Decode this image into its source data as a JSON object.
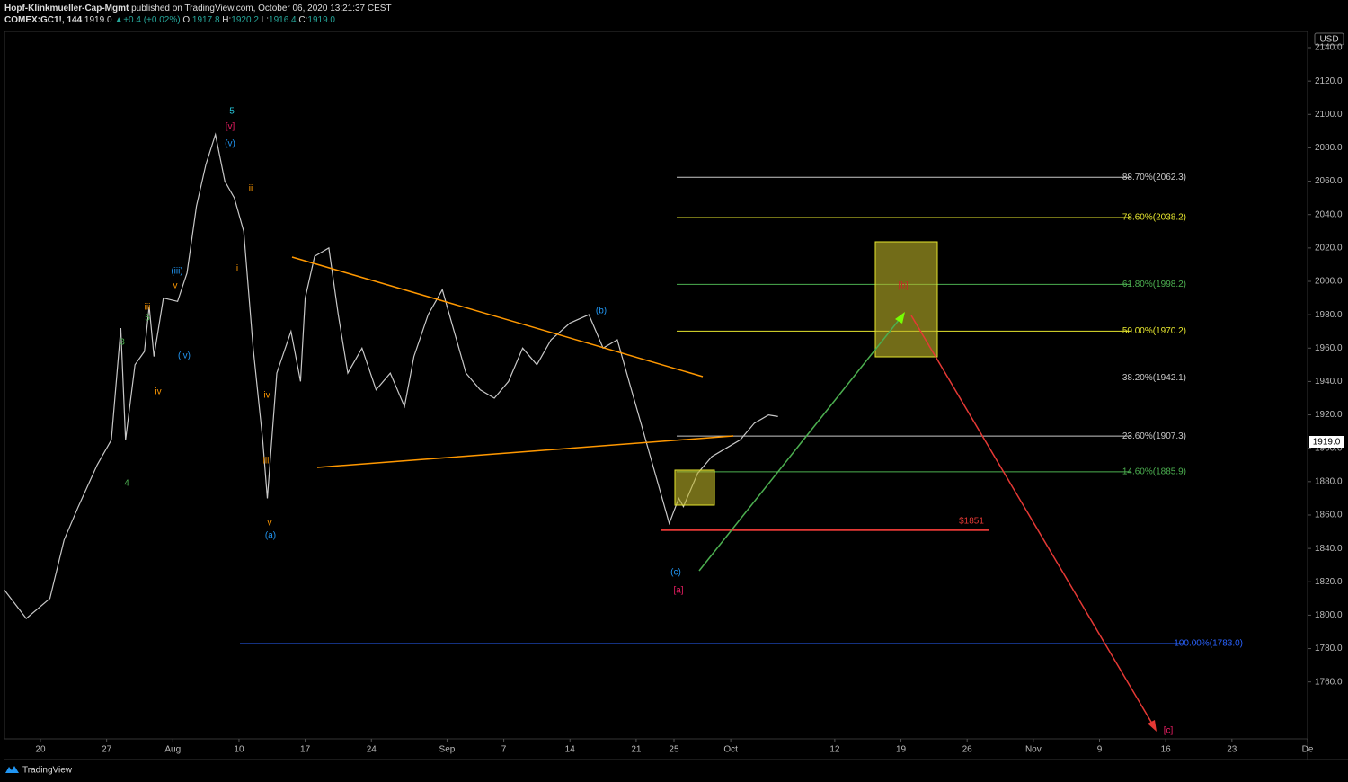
{
  "header": {
    "author": "Hopf-Klinkmueller-Cap-Mgmt",
    "published": "published on TradingView.com, October 06, 2020 13:21:37 CEST",
    "symbol": "COMEX:GC1!, 144",
    "last": "1919.0",
    "change": "+0.4 (+0.02%)",
    "ohlc": [
      {
        "key": "O:",
        "value": "1917.8"
      },
      {
        "key": "H:",
        "value": "1920.2"
      },
      {
        "key": "L:",
        "value": "1916.4"
      },
      {
        "key": "C:",
        "value": "1919.0"
      }
    ]
  },
  "chart_data": {
    "type": "line",
    "currency": "USD",
    "price_tag": "1919.0",
    "color": "#c8c8c8",
    "x": [
      -3.8,
      -1.5,
      1,
      2.5,
      4,
      6,
      7.5,
      8.5,
      9,
      10,
      11,
      11.5,
      12,
      13,
      14.5,
      15.5,
      16.5,
      17.5,
      18.5,
      19.5,
      20.5,
      21.5,
      22.5,
      23.5,
      24,
      25,
      26.5,
      27.5,
      28,
      29,
      30.5,
      31.5,
      32.5,
      34,
      35.5,
      37,
      38.5,
      39.5,
      41,
      42.5,
      43.5,
      45,
      46.5,
      48,
      49.5,
      51,
      52.5,
      54,
      56,
      58,
      59.5,
      61,
      62.5,
      63.5,
      64.5,
      65.5,
      66.5,
      67.5,
      68,
      69.5,
      71,
      72.5,
      74,
      75.5,
      77,
      78
    ],
    "values": [
      1815,
      1798,
      1810,
      1845,
      1865,
      1890,
      1905,
      1972,
      1905,
      1950,
      1958,
      1985,
      1955,
      1990,
      1988,
      2005,
      2045,
      2070,
      2088,
      2060,
      2050,
      2030,
      1960,
      1905,
      1870,
      1945,
      1970,
      1940,
      1990,
      2015,
      2020,
      1980,
      1945,
      1960,
      1935,
      1945,
      1925,
      1955,
      1980,
      1995,
      1975,
      1945,
      1935,
      1930,
      1940,
      1960,
      1950,
      1965,
      1975,
      1980,
      1960,
      1965,
      1935,
      1915,
      1895,
      1875,
      1855,
      1870,
      1865,
      1885,
      1895,
      1900,
      1905,
      1915,
      1920,
      1919
    ],
    "xlim": [
      -3.8,
      134
    ],
    "xticks": [
      {
        "value": 0,
        "label": "20"
      },
      {
        "value": 7,
        "label": "27"
      },
      {
        "value": 14,
        "label": "Aug"
      },
      {
        "value": 21,
        "label": "10"
      },
      {
        "value": 28,
        "label": "17"
      },
      {
        "value": 35,
        "label": "24"
      },
      {
        "value": 43,
        "label": "Sep"
      },
      {
        "value": 49,
        "label": "7"
      },
      {
        "value": 56,
        "label": "14"
      },
      {
        "value": 63,
        "label": "21"
      },
      {
        "value": 67,
        "label": "25"
      },
      {
        "value": 73,
        "label": "Oct"
      },
      {
        "value": 84,
        "label": "12"
      },
      {
        "value": 91,
        "label": "19"
      },
      {
        "value": 98,
        "label": "26"
      },
      {
        "value": 105,
        "label": "Nov"
      },
      {
        "value": 112,
        "label": "9"
      },
      {
        "value": 119,
        "label": "16"
      },
      {
        "value": 126,
        "label": "23"
      },
      {
        "value": 134,
        "label": "De"
      }
    ],
    "ylim": [
      1725.9,
      2149.7
    ],
    "yticks": [
      {
        "value": 1760,
        "label": "1760.0"
      },
      {
        "value": 1780,
        "label": "1780.0"
      },
      {
        "value": 1800,
        "label": "1800.0"
      },
      {
        "value": 1820,
        "label": "1820.0"
      },
      {
        "value": 1840,
        "label": "1840.0"
      },
      {
        "value": 1860,
        "label": "1860.0"
      },
      {
        "value": 1880,
        "label": "1880.0"
      },
      {
        "value": 1900,
        "label": "1900.0"
      },
      {
        "value": 1920,
        "label": "1920.0"
      },
      {
        "value": 1940,
        "label": "1940.0"
      },
      {
        "value": 1960,
        "label": "1960.0"
      },
      {
        "value": 1980,
        "label": "1980.0"
      },
      {
        "value": 2000,
        "label": "2000.0"
      },
      {
        "value": 2020,
        "label": "2020.0"
      },
      {
        "value": 2040,
        "label": "2040.0"
      },
      {
        "value": 2060,
        "label": "2060.0"
      },
      {
        "value": 2080,
        "label": "2080.0"
      },
      {
        "value": 2100,
        "label": "2100.0"
      },
      {
        "value": 2120,
        "label": "2120.0"
      },
      {
        "value": 2140,
        "label": "2140.0"
      }
    ],
    "fib_levels": [
      {
        "label": "88.70%(2062.3)",
        "value": 2062.3,
        "color": "#c8c8c8"
      },
      {
        "label": "78.60%(2038.2)",
        "value": 2038.2,
        "color": "#e6e62e"
      },
      {
        "label": "61.80%(1998.2)",
        "value": 1998.2,
        "color": "#4caf50"
      },
      {
        "label": "50.00%(1970.2)",
        "value": 1970.2,
        "color": "#e6e62e"
      },
      {
        "label": "38.20%(1942.1)",
        "value": 1942.1,
        "color": "#c8c8c8"
      },
      {
        "label": "23.60%(1907.3)",
        "value": 1907.3,
        "color": "#c8c8c8"
      },
      {
        "label": "14.60%(1885.9)",
        "value": 1885.9,
        "color": "#4caf50"
      },
      {
        "label": "100.00%(1783.0)",
        "value": 1783.0,
        "color": "#2962ff"
      }
    ],
    "support": {
      "label": "$1851",
      "value": 1851,
      "color": "#e53935"
    },
    "annotations": [
      {
        "text": "5",
        "color": "#26c6da"
      },
      {
        "text": "[v]",
        "color": "#e91e63"
      },
      {
        "text": "(v)",
        "color": "#2196f3"
      },
      {
        "text": "ii",
        "color": "#ff9800"
      },
      {
        "text": "i",
        "color": "#ff9800"
      },
      {
        "text": "(iii)",
        "color": "#2196f3"
      },
      {
        "text": "v",
        "color": "#ff9800"
      },
      {
        "text": "iii",
        "color": "#ff9800"
      },
      {
        "text": "5",
        "color": "#4caf50"
      },
      {
        "text": "3",
        "color": "#4caf50"
      },
      {
        "text": "(iv)",
        "color": "#2196f3"
      },
      {
        "text": "iv",
        "color": "#ff9800"
      },
      {
        "text": "iv",
        "color": "#ff9800"
      },
      {
        "text": "iii",
        "color": "#ff9800"
      },
      {
        "text": "4",
        "color": "#4caf50"
      },
      {
        "text": "v",
        "color": "#ff9800"
      },
      {
        "text": "(a)",
        "color": "#2196f3"
      },
      {
        "text": "(b)",
        "color": "#2196f3"
      },
      {
        "text": "(c)",
        "color": "#2196f3"
      },
      {
        "text": "[a]",
        "color": "#e91e63"
      },
      {
        "text": "[b]",
        "color": "#c62828"
      },
      {
        "text": "[c]",
        "color": "#e91e63"
      }
    ]
  },
  "footer": {
    "brand": "TradingView"
  }
}
